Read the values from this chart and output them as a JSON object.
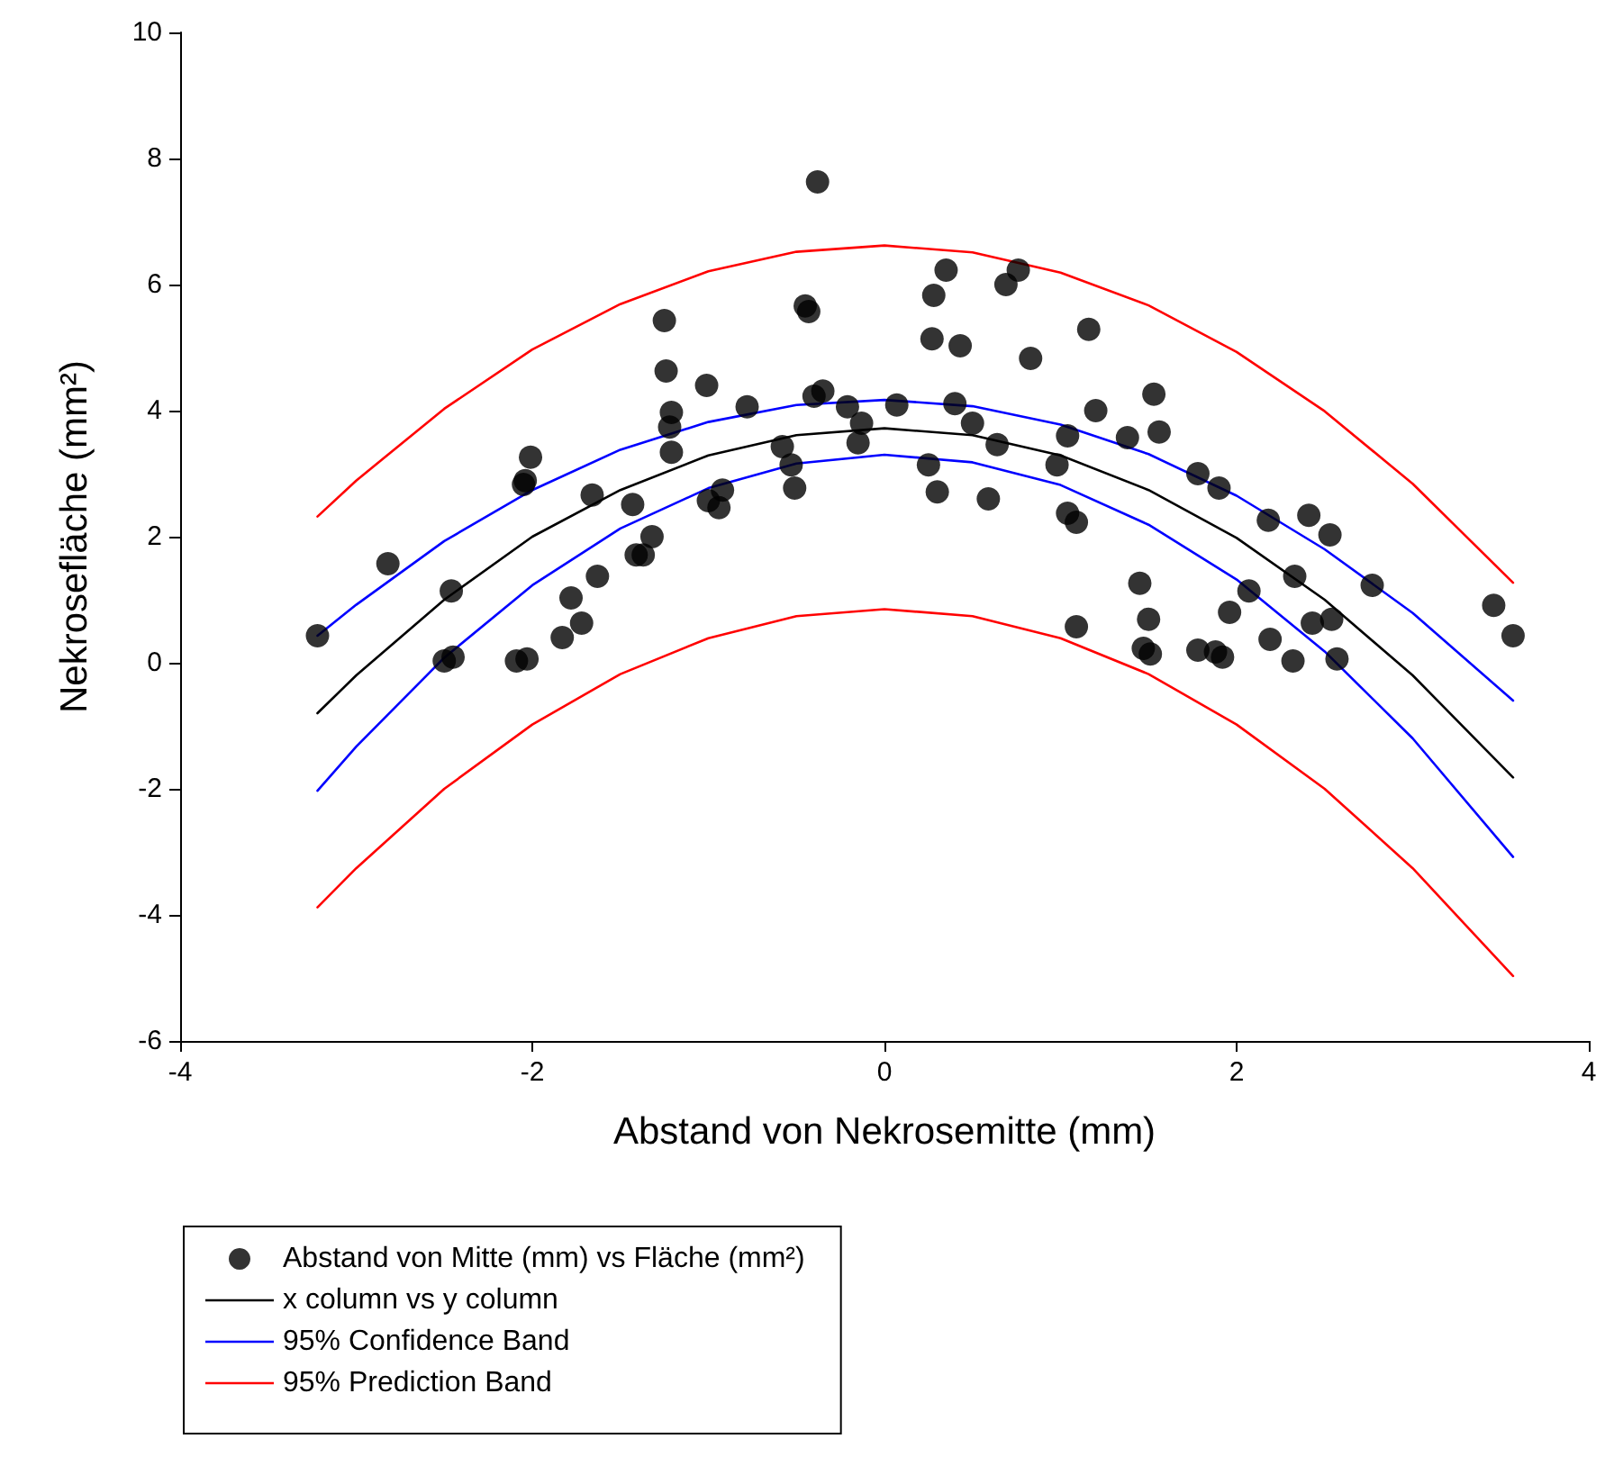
{
  "chart_data": {
    "type": "scatter",
    "xlabel": "Abstand von Nekrosemitte (mm)",
    "ylabel": "Nekrosefläche (mm²)",
    "xlim": [
      -4,
      4
    ],
    "xticks": [
      -4,
      -2,
      0,
      2,
      4
    ],
    "ylim": [
      -6,
      10
    ],
    "yticks": [
      -6,
      -4,
      -2,
      0,
      2,
      4,
      6,
      8,
      10
    ],
    "grid": false,
    "legend": "bottom left",
    "marker": "circle",
    "series": [
      {
        "name": "Abstand von Mitte (mm) vs Fläche (mm²)",
        "color": "#000000",
        "x": [
          -3.22,
          -2.82,
          -2.46,
          -2.5,
          -2.45,
          -2.01,
          -2.05,
          -2.04,
          -2.09,
          -2.03,
          -1.66,
          -1.78,
          -1.72,
          -1.83,
          -1.63,
          -1.43,
          -1.32,
          -1.41,
          -1.37,
          -1.25,
          -1.24,
          -1.21,
          -1.22,
          -1.21,
          -1.01,
          -0.78,
          -1.0,
          -0.94,
          -0.92,
          -0.38,
          -0.45,
          -0.43,
          -0.4,
          -0.35,
          -0.21,
          -0.13,
          -0.15,
          -0.58,
          -0.53,
          -0.51,
          0.07,
          0.35,
          0.28,
          0.27,
          0.43,
          0.4,
          0.5,
          0.64,
          0.25,
          0.3,
          0.59,
          0.69,
          0.76,
          0.83,
          1.16,
          1.04,
          0.98,
          1.04,
          1.09,
          1.09,
          1.45,
          1.5,
          1.47,
          1.51,
          1.53,
          1.2,
          1.56,
          1.38,
          1.78,
          1.9,
          2.18,
          2.41,
          2.53,
          2.77,
          3.46,
          3.57,
          2.33,
          2.07,
          1.96,
          2.43,
          2.54,
          2.19,
          2.32,
          2.57,
          1.78,
          1.88,
          1.92
        ],
        "values": [
          0.43,
          1.57,
          1.14,
          0.03,
          0.09,
          3.26,
          2.83,
          2.89,
          0.03,
          0.06,
          2.66,
          1.03,
          0.63,
          0.4,
          1.37,
          2.51,
          2.0,
          1.71,
          1.71,
          5.43,
          4.63,
          3.97,
          3.74,
          3.34,
          4.4,
          4.06,
          2.57,
          2.46,
          2.74,
          7.63,
          5.66,
          5.57,
          4.23,
          4.31,
          4.06,
          3.8,
          3.49,
          3.43,
          3.14,
          2.77,
          4.09,
          6.23,
          5.83,
          5.14,
          5.03,
          4.11,
          3.8,
          3.46,
          3.14,
          2.71,
          2.6,
          6.0,
          6.23,
          4.83,
          5.29,
          3.6,
          3.14,
          2.37,
          2.23,
          0.57,
          1.26,
          0.69,
          0.23,
          0.14,
          4.26,
          4.0,
          3.66,
          3.57,
          3.0,
          2.77,
          2.26,
          2.34,
          2.03,
          1.23,
          0.91,
          0.43,
          1.37,
          1.14,
          0.8,
          0.63,
          0.69,
          0.37,
          0.03,
          0.06,
          0.2,
          0.17,
          0.09
        ]
      },
      {
        "type": "line",
        "marker": "none",
        "name": "x column vs y column",
        "color": "#000000",
        "x": [
          -3.22,
          -3,
          -2.5,
          -2,
          -1.5,
          -1,
          -0.5,
          0,
          0.5,
          1,
          1.5,
          2,
          2.5,
          3,
          3.57
        ],
        "values": [
          -0.8,
          -0.2,
          1.0,
          2.0,
          2.74,
          3.29,
          3.61,
          3.72,
          3.61,
          3.29,
          2.74,
          1.98,
          1.0,
          -0.2,
          -1.82
        ]
      },
      {
        "type": "line",
        "marker": "none",
        "name": "95% Confidence Band",
        "color": "#0000ff",
        "x": [
          -3.22,
          -3,
          -2.5,
          -2,
          -1.5,
          -1,
          -0.5,
          0,
          0.5,
          1,
          1.5,
          2,
          2.5,
          3,
          3.57
        ],
        "values": [
          0.43,
          0.92,
          1.93,
          2.74,
          3.38,
          3.82,
          4.09,
          4.17,
          4.07,
          3.78,
          3.31,
          2.65,
          1.8,
          0.79,
          -0.6
        ]
      },
      {
        "type": "line",
        "marker": "none",
        "color": "#0000ff",
        "x": [
          -3.22,
          -3,
          -2.5,
          -2,
          -1.5,
          -1,
          -0.5,
          0,
          0.5,
          1,
          1.5,
          2,
          2.5,
          3,
          3.57
        ],
        "values": [
          -2.03,
          -1.33,
          0.08,
          1.23,
          2.13,
          2.77,
          3.16,
          3.3,
          3.18,
          2.82,
          2.19,
          1.32,
          0.18,
          -1.2,
          -3.08
        ]
      },
      {
        "type": "line",
        "marker": "none",
        "name": "95% Prediction Band",
        "color": "#ff0000",
        "x": [
          -3.22,
          -3,
          -2.5,
          -2,
          -1.5,
          -1,
          -0.5,
          0,
          0.5,
          1,
          1.5,
          2,
          2.5,
          3,
          3.57
        ],
        "values": [
          2.32,
          2.89,
          4.03,
          4.97,
          5.69,
          6.21,
          6.52,
          6.62,
          6.51,
          6.19,
          5.67,
          4.93,
          3.99,
          2.84,
          1.27
        ]
      },
      {
        "type": "line",
        "marker": "none",
        "color": "#ff0000",
        "x": [
          -3.22,
          -3,
          -2.5,
          -2,
          -1.5,
          -1,
          -0.5,
          0,
          0.5,
          1,
          1.5,
          2,
          2.5,
          3,
          3.57
        ],
        "values": [
          -3.88,
          -3.26,
          -2.0,
          -0.98,
          -0.18,
          0.39,
          0.74,
          0.85,
          0.74,
          0.39,
          -0.18,
          -0.98,
          -2.0,
          -3.26,
          -4.97
        ]
      }
    ]
  }
}
